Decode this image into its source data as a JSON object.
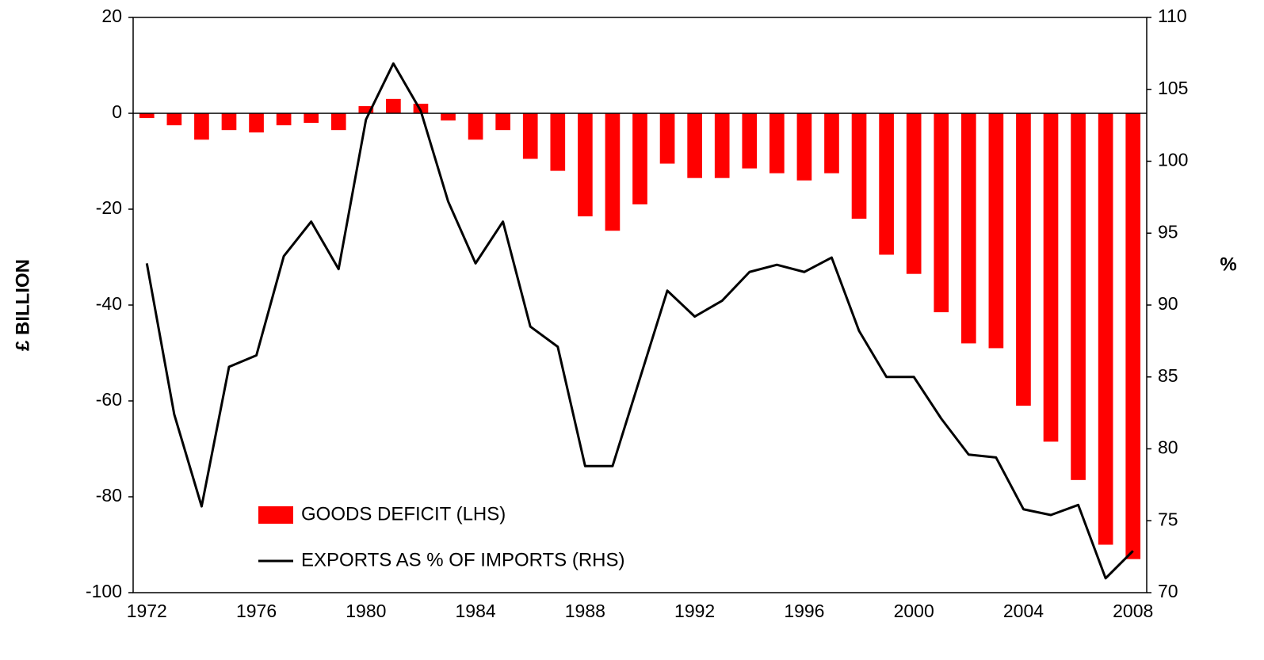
{
  "chart_data": {
    "type": "bar_line",
    "categories": [
      "1972",
      null,
      null,
      null,
      "1976",
      null,
      null,
      null,
      "1980",
      null,
      null,
      null,
      "1984",
      null,
      null,
      null,
      "1988",
      null,
      null,
      null,
      "1992",
      null,
      null,
      null,
      "1996",
      null,
      null,
      null,
      "2000",
      null,
      null,
      null,
      "2004",
      null,
      null,
      null,
      "2008"
    ],
    "series": [
      {
        "name": "GOODS DEFICIT (LHS)",
        "type": "bar",
        "color": "#ff0000",
        "values": [
          -1,
          -2.5,
          -5.5,
          -3.5,
          -4,
          -2.5,
          -2,
          -3.5,
          1.5,
          3,
          2,
          -1.5,
          -5.5,
          -3.5,
          -9.5,
          -12,
          -21.5,
          -24.5,
          -19,
          -10.5,
          -13.5,
          -13.5,
          -11.5,
          -12.5,
          -14,
          -12.5,
          -22,
          -29.5,
          -33.5,
          -41.5,
          -48,
          -49,
          -61,
          -68.5,
          -76.5,
          -90,
          -93
        ]
      },
      {
        "name": "EXPORTS AS % OF IMPORTS (RHS)",
        "type": "line",
        "axis": "y2",
        "color": "#000000",
        "values": [
          92.9,
          82.4,
          76.0,
          85.7,
          86.5,
          93.4,
          95.8,
          92.5,
          102.9,
          106.8,
          103.5,
          97.2,
          92.9,
          95.8,
          88.5,
          87.1,
          78.8,
          78.8,
          84.9,
          91.0,
          89.2,
          90.3,
          92.3,
          92.8,
          92.3,
          93.3,
          88.2,
          85.0,
          85.0,
          82.1,
          79.6,
          79.4,
          75.8,
          75.4,
          76.1,
          71.0,
          72.9
        ]
      }
    ],
    "y_label": "£ BILLION",
    "y2_label": "%",
    "ylim": [
      -100,
      20
    ],
    "yticks": [
      -100,
      -80,
      -60,
      -40,
      -20,
      0,
      20
    ],
    "y2lim": [
      70,
      110
    ],
    "y2ticks": [
      70,
      75,
      80,
      85,
      90,
      95,
      100,
      105,
      110
    ],
    "legend": "lower left",
    "grid": false
  }
}
